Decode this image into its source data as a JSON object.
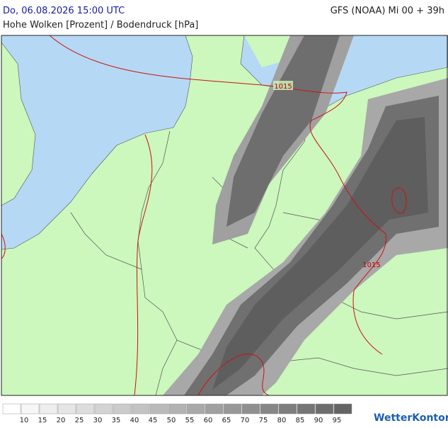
{
  "header": {
    "datetime": "Do, 06.08.2026 15:00 UTC",
    "model": "GFS (NOAA) Mi 00 + 39h",
    "subtitle": "Hohe Wolken [Prozent] / Bodendruck [hPa]"
  },
  "isobar_labels": [
    "1015",
    "1015"
  ],
  "legend": {
    "labels": [
      10,
      15,
      20,
      25,
      30,
      35,
      40,
      45,
      50,
      55,
      60,
      65,
      70,
      75,
      80,
      85,
      90,
      95
    ]
  },
  "logo": "WetterKontor"
}
